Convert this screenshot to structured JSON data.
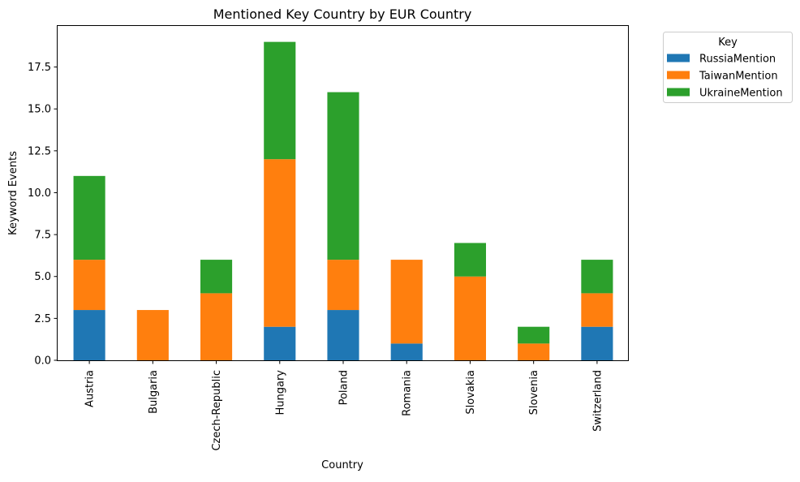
{
  "chart_data": {
    "type": "bar",
    "stacked": true,
    "title": "Mentioned Key Country by EUR Country",
    "xlabel": "Country",
    "ylabel": "Keyword Events",
    "categories": [
      "Austria",
      "Bulgaria",
      "Czech-Republic",
      "Hungary",
      "Poland",
      "Romania",
      "Slovakia",
      "Slovenia",
      "Switzerland"
    ],
    "series": [
      {
        "name": "RussiaMention",
        "color": "#1f77b4",
        "values": [
          3,
          0,
          0,
          2,
          3,
          1,
          0,
          0,
          2
        ]
      },
      {
        "name": "TaiwanMention",
        "color": "#ff7f0e",
        "values": [
          3,
          3,
          4,
          10,
          3,
          5,
          5,
          1,
          2
        ]
      },
      {
        "name": "UkraineMention",
        "color": "#2ca02c",
        "values": [
          5,
          0,
          2,
          7,
          10,
          0,
          2,
          1,
          2
        ]
      }
    ],
    "ylim": [
      0,
      19.95
    ],
    "yticks": [
      0.0,
      2.5,
      5.0,
      7.5,
      10.0,
      12.5,
      15.0,
      17.5
    ],
    "ytick_labels": [
      "0.0",
      "2.5",
      "5.0",
      "7.5",
      "10.0",
      "12.5",
      "15.0",
      "17.5"
    ],
    "grid": false,
    "legend": {
      "title": "Key",
      "placement": "outside-top-right"
    }
  }
}
